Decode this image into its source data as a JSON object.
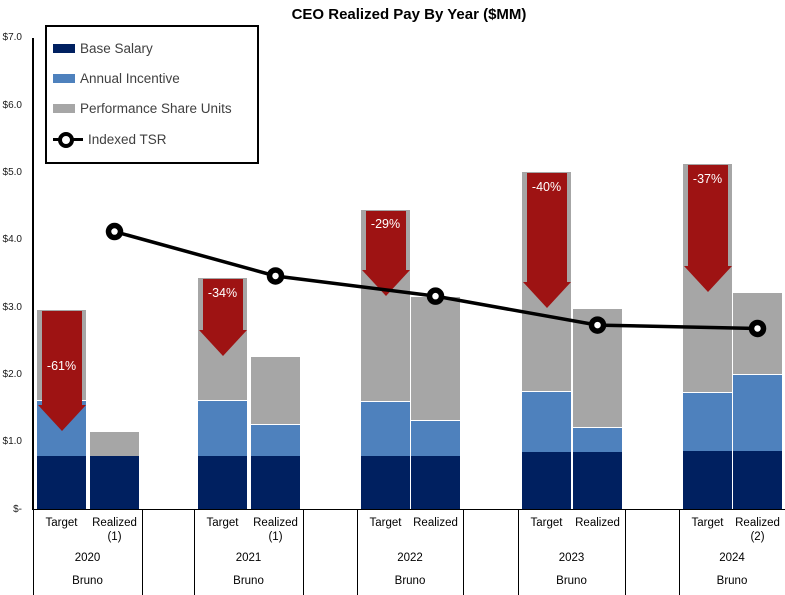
{
  "title": "CEO Realized Pay By Year ($MM)",
  "chart_data": {
    "type": "bar",
    "subtype": "stacked-bar-pairs-with-line-overlay",
    "title": "CEO Realized Pay By Year ($MM)",
    "value_unit": "$MM",
    "ylim": [
      0,
      7
    ],
    "ytick_labels": [
      "$-",
      "$1.0",
      "$2.0",
      "$3.0",
      "$4.0",
      "$5.0",
      "$6.0",
      "$7.0"
    ],
    "grid": "off",
    "legend_position": "top-left",
    "stack_order": [
      "base_salary",
      "annual_incentive",
      "psu"
    ],
    "legend": [
      {
        "label": "Base Salary",
        "type": "bar",
        "color": "#002060"
      },
      {
        "label": "Annual Incentive",
        "type": "bar",
        "color": "#4E81BD"
      },
      {
        "label": "Performance Share Units",
        "type": "bar",
        "color": "#A6A6A6"
      },
      {
        "label": "Indexed TSR",
        "type": "line",
        "color": "#000000"
      }
    ],
    "arrow_color": "#9E1313",
    "groups": [
      {
        "year": "2020",
        "person": "Bruno",
        "bars": [
          {
            "label": "Target",
            "footnote": "",
            "base_salary": 0.8,
            "annual_incentive": 0.82,
            "psu": 1.36,
            "total": 2.98
          },
          {
            "label": "Realized",
            "footnote": "(1)",
            "base_salary": 0.8,
            "annual_incentive": 0.0,
            "psu": 0.37,
            "total": 1.17
          }
        ],
        "change_label": "-61%",
        "indexed_tsr": 4.13
      },
      {
        "year": "2021",
        "person": "Bruno",
        "bars": [
          {
            "label": "Target",
            "footnote": "",
            "base_salary": 0.8,
            "annual_incentive": 0.82,
            "psu": 1.84,
            "total": 3.46
          },
          {
            "label": "Realized",
            "footnote": "(1)",
            "base_salary": 0.8,
            "annual_incentive": 0.47,
            "psu": 1.01,
            "total": 2.28
          }
        ],
        "change_label": "-34%",
        "indexed_tsr": 3.47
      },
      {
        "year": "2022",
        "person": "Bruno",
        "bars": [
          {
            "label": "Target",
            "footnote": "",
            "base_salary": 0.8,
            "annual_incentive": 0.81,
            "psu": 2.86,
            "total": 4.47
          },
          {
            "label": "Realized",
            "footnote": "",
            "base_salary": 0.8,
            "annual_incentive": 0.53,
            "psu": 1.84,
            "total": 3.17
          }
        ],
        "change_label": "-29%",
        "indexed_tsr": 3.17
      },
      {
        "year": "2023",
        "person": "Bruno",
        "bars": [
          {
            "label": "Target",
            "footnote": "",
            "base_salary": 0.86,
            "annual_incentive": 0.9,
            "psu": 3.27,
            "total": 5.03
          },
          {
            "label": "Realized",
            "footnote": "",
            "base_salary": 0.86,
            "annual_incentive": 0.37,
            "psu": 1.76,
            "total": 2.99
          }
        ],
        "change_label": "-40%",
        "indexed_tsr": 2.74
      },
      {
        "year": "2024",
        "person": "Bruno",
        "bars": [
          {
            "label": "Target",
            "footnote": "",
            "base_salary": 0.87,
            "annual_incentive": 0.88,
            "psu": 3.4,
            "total": 5.15
          },
          {
            "label": "Realized",
            "footnote": "(2)",
            "base_salary": 0.87,
            "annual_incentive": 1.15,
            "psu": 1.21,
            "total": 3.23
          }
        ],
        "change_label": "-37%",
        "indexed_tsr": 2.69
      }
    ]
  }
}
